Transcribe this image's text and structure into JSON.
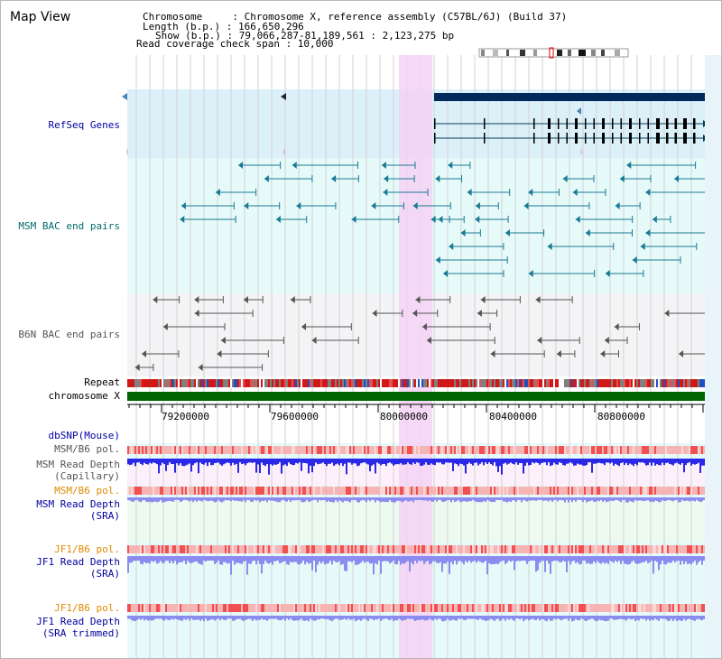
{
  "title": "Map View",
  "info": {
    "line1": "Chromosome     : Chromosome X, reference assembly (C57BL/6J) (Build 37)",
    "line2": "Length (b.p.) : 166,650,296",
    "line3": "Show (b.p.) : 79,066,287-81,189,561 : 2,123,275 bp",
    "line4": "Read coverage check span : 10,000"
  },
  "tracks": {
    "refseq": "RefSeq Genes",
    "msm_bac": "MSM BAC end pairs",
    "b6n_bac": "B6N BAC end pairs",
    "repeat": "Repeat",
    "chromosome": "chromosome X",
    "dbsnp": "dbSNP(Mouse)",
    "msm_pol1": "MSM/B6 pol.",
    "msm_depth_cap": "MSM Read Depth\n(Capillary)",
    "msm_pol2": "MSM/B6 pol.",
    "msm_depth_sra": "MSM Read Depth\n(SRA)",
    "jf1_pol1": "JF1/B6 pol.",
    "jf1_depth_sra": "JF1 Read Depth\n(SRA)",
    "jf1_pol2": "JF1/B6 pol.",
    "jf1_depth_trim": "JF1 Read Depth\n(SRA trimmed)"
  },
  "axis_ticks": [
    "79200000",
    "79600000",
    "80000000",
    "80400000",
    "80800000"
  ],
  "colors": {
    "refseq_bg": "#dcf0fa",
    "track_bg": "#e6fafa",
    "highlight": "#f5d2f5",
    "chromosome_bar": "#006400",
    "depth_blue": "#2828e6",
    "depth_light": "#8c8cf0",
    "pol_red": "#f05050"
  }
}
